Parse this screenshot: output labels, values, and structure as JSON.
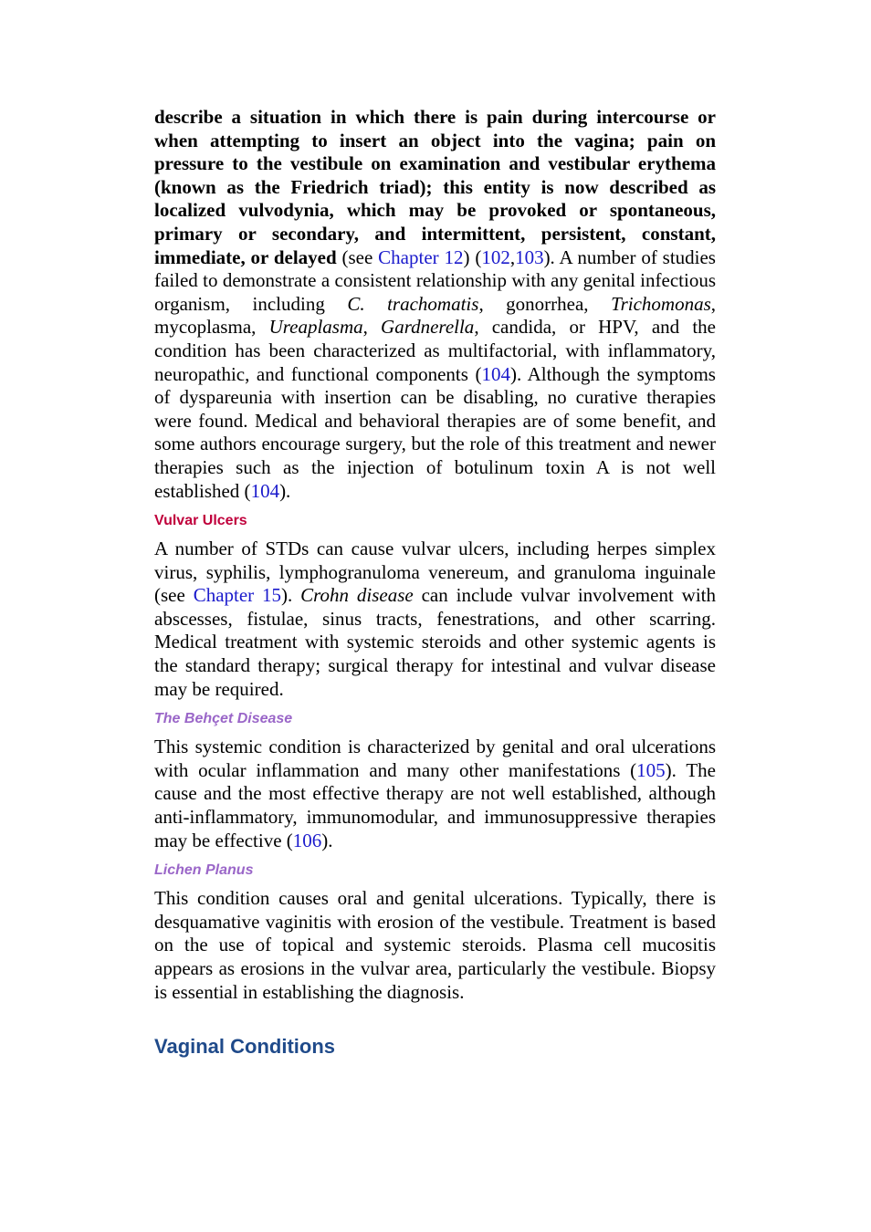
{
  "intro": [
    "describe a situation in which there is pain during intercourse or when attempting to insert an object into the vagina; pain on pressure to the vestibule on examination and vestibular erythema (known as the Friedrich triad); this entity is now described as localized vulvodynia, which may be provoked or spontaneous, primary or secondary, and intermittent, persistent, constant, immediate, or delayed",
    " (see ",
    "Chapter 12",
    ") (",
    "102",
    ",",
    "103",
    "). A number of studies failed to demonstrate a consistent relationship with any genital infectious organism, including ",
    "C. trachomatis",
    ", gonorrhea, ",
    "Trichomonas",
    ", mycoplasma, ",
    "Ureaplasma",
    ", ",
    "Gardnerella",
    ", candida, or HPV, and the condition has been characterized as multifactorial, with inflammatory, neuropathic, and functional components (",
    "104",
    "). Although the symptoms of dyspareunia with insertion can be disabling, no curative therapies were found. Medical and behavioral therapies are of some benefit, and some authors encourage surgery, but the role of this treatment and newer therapies such as the injection of botulinum toxin A is not well established (",
    "104",
    ")."
  ],
  "sections": [
    {
      "heading": "Vulvar Ulcers",
      "body": [
        "A number of STDs can cause vulvar ulcers, including herpes simplex virus, syphilis, lymphogranuloma venereum, and granuloma inguinale (see ",
        "Chapter 15",
        "). ",
        "Crohn disease",
        " can include vulvar involvement with abscesses, fistulae, sinus tracts, fenestrations, and other scarring. Medical treatment with systemic steroids and other systemic agents is the standard therapy; surgical therapy for intestinal and vulvar disease may be required."
      ]
    },
    {
      "heading": "The Behçet Disease",
      "body": [
        "This systemic condition is characterized by genital and oral ulcerations with ocular inflammation and many other manifestations (",
        "105",
        "). The cause and the most effective therapy are not well established, although anti-inflammatory, immunomodular, and immunosuppressive therapies may be effective (",
        "106",
        ")."
      ]
    },
    {
      "heading": "Lichen Planus",
      "body": [
        "This condition causes oral and genital ulcerations. Typically, there is desquamative vaginitis with erosion of the vestibule. Treatment is based on the use of topical and systemic steroids. Plasma cell mucositis appears as erosions in the vulvar area, particularly the vestibule. Biopsy is essential in establishing the diagnosis."
      ]
    }
  ],
  "next_heading": "Vaginal Conditions"
}
